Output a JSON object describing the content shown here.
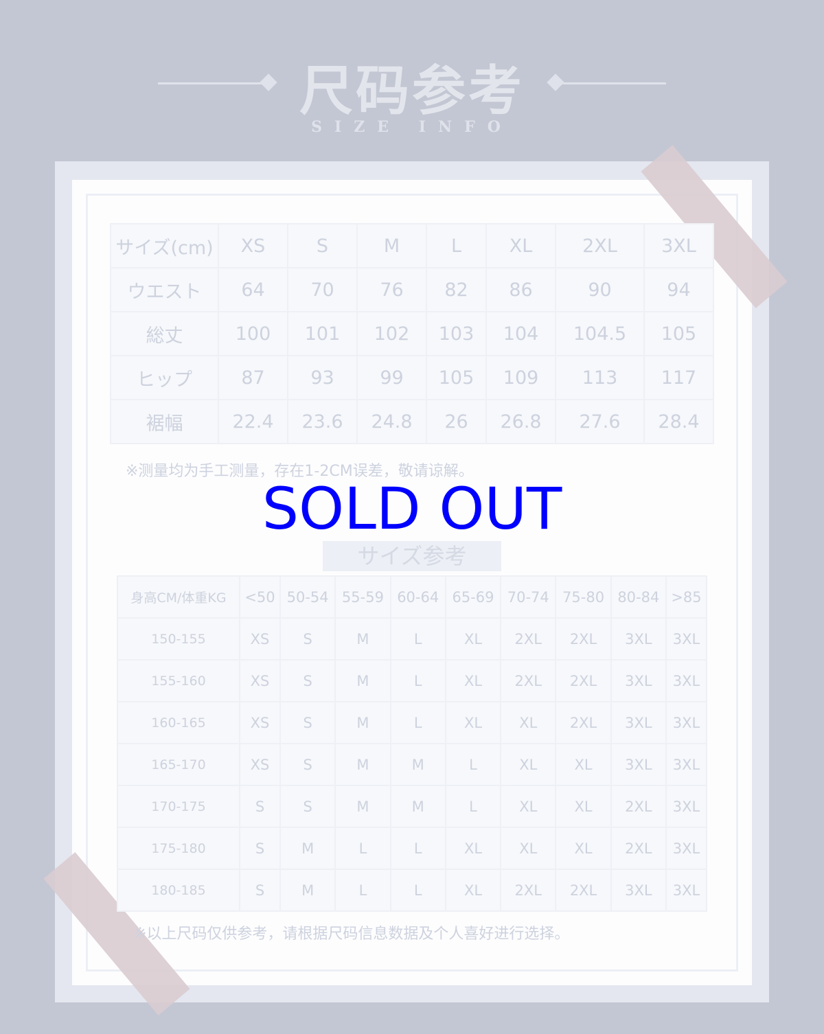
{
  "header": {
    "title": "尺码参考",
    "subtitle": "SIZE INFO"
  },
  "measurements": {
    "headers": [
      "サイズ(cm)",
      "XS",
      "S",
      "M",
      "L",
      "XL",
      "2XL",
      "3XL"
    ],
    "rows": [
      [
        "ウエスト",
        "64",
        "70",
        "76",
        "82",
        "86",
        "90",
        "94"
      ],
      [
        "総丈",
        "100",
        "101",
        "102",
        "103",
        "104",
        "104.5",
        "105"
      ],
      [
        "ヒップ",
        "87",
        "93",
        "99",
        "105",
        "109",
        "113",
        "117"
      ],
      [
        "裾幅",
        "22.4",
        "23.6",
        "24.8",
        "26",
        "26.8",
        "27.6",
        "28.4"
      ]
    ],
    "note": "※测量均为手工测量，存在1-2CM误差，敬请谅解。"
  },
  "overlay": {
    "sold_out": "SOLD OUT",
    "color": "#0000ff"
  },
  "guide": {
    "title": "サイズ参考",
    "headers": [
      "身高CM/体重KG",
      "<50",
      "50-54",
      "55-59",
      "60-64",
      "65-69",
      "70-74",
      "75-80",
      "80-84",
      ">85"
    ],
    "rows": [
      [
        "150-155",
        "XS",
        "S",
        "M",
        "L",
        "XL",
        "2XL",
        "2XL",
        "3XL",
        "3XL"
      ],
      [
        "155-160",
        "XS",
        "S",
        "M",
        "L",
        "XL",
        "2XL",
        "2XL",
        "3XL",
        "3XL"
      ],
      [
        "160-165",
        "XS",
        "S",
        "M",
        "L",
        "XL",
        "XL",
        "2XL",
        "3XL",
        "3XL"
      ],
      [
        "165-170",
        "XS",
        "S",
        "M",
        "M",
        "L",
        "XL",
        "XL",
        "3XL",
        "3XL"
      ],
      [
        "170-175",
        "S",
        "S",
        "M",
        "M",
        "L",
        "XL",
        "XL",
        "2XL",
        "3XL"
      ],
      [
        "175-180",
        "S",
        "M",
        "L",
        "L",
        "XL",
        "XL",
        "XL",
        "2XL",
        "3XL"
      ],
      [
        "180-185",
        "S",
        "M",
        "L",
        "L",
        "XL",
        "2XL",
        "2XL",
        "3XL",
        "3XL"
      ]
    ],
    "note": "※以上尺码仅供参考，请根据尺码信息数据及个人喜好进行选择。"
  }
}
